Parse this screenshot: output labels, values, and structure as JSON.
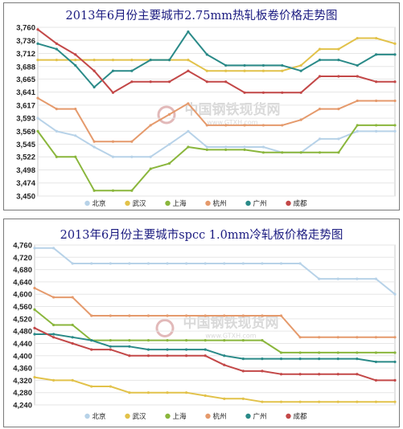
{
  "colors": {
    "beijing": "#b7d2e8",
    "wuhan": "#e2c24a",
    "shanghai": "#8ab63c",
    "hangzhou": "#e59a6c",
    "guangzhou": "#2a8a88",
    "chengdu": "#c34848"
  },
  "watermark": {
    "cn": "中国钢铁现货网",
    "en": "www.GTXH.com"
  },
  "chart_data": [
    {
      "type": "line",
      "title": "2013年6月份主要城市2.75mm热轧板卷价格走势图",
      "x": [
        1,
        2,
        3,
        4,
        5,
        6,
        7,
        8,
        9,
        10,
        11,
        12,
        13,
        14,
        15,
        16,
        17,
        18,
        19,
        20
      ],
      "ylim": [
        3450,
        3760
      ],
      "yticks": [
        3450,
        3474,
        3498,
        3522,
        3545,
        3569,
        3593,
        3617,
        3641,
        3665,
        3688,
        3712,
        3736,
        3760
      ],
      "legend_position": "bottom",
      "grid": true,
      "series": [
        {
          "name": "北京",
          "color_key": "beijing",
          "values": [
            3593,
            3569,
            3561,
            3540,
            3522,
            3522,
            3522,
            3545,
            3569,
            3540,
            3540,
            3540,
            3540,
            3530,
            3530,
            3555,
            3555,
            3569,
            3569,
            3569
          ]
        },
        {
          "name": "武汉",
          "color_key": "wuhan",
          "values": [
            3700,
            3700,
            3700,
            3700,
            3700,
            3700,
            3700,
            3700,
            3700,
            3680,
            3680,
            3680,
            3680,
            3680,
            3690,
            3720,
            3720,
            3740,
            3740,
            3730
          ]
        },
        {
          "name": "上海",
          "color_key": "shanghai",
          "values": [
            3569,
            3522,
            3522,
            3460,
            3460,
            3460,
            3500,
            3510,
            3540,
            3535,
            3535,
            3535,
            3530,
            3530,
            3530,
            3530,
            3530,
            3580,
            3580,
            3580
          ]
        },
        {
          "name": "杭州",
          "color_key": "hangzhou",
          "values": [
            3630,
            3610,
            3610,
            3550,
            3550,
            3550,
            3580,
            3600,
            3620,
            3580,
            3580,
            3580,
            3580,
            3580,
            3590,
            3610,
            3610,
            3625,
            3625,
            3625
          ]
        },
        {
          "name": "广州",
          "color_key": "guangzhou",
          "values": [
            3730,
            3720,
            3690,
            3650,
            3680,
            3680,
            3700,
            3700,
            3752,
            3710,
            3690,
            3690,
            3690,
            3690,
            3680,
            3700,
            3700,
            3690,
            3710,
            3710
          ]
        },
        {
          "name": "成都",
          "color_key": "chengdu",
          "values": [
            3756,
            3730,
            3710,
            3680,
            3640,
            3660,
            3660,
            3660,
            3680,
            3660,
            3660,
            3640,
            3640,
            3640,
            3640,
            3670,
            3670,
            3670,
            3660,
            3660
          ]
        }
      ]
    },
    {
      "type": "line",
      "title": "2013年6月份主要城市spcc 1.0mm冷轧板价格走势图",
      "x": [
        1,
        2,
        3,
        4,
        5,
        6,
        7,
        8,
        9,
        10,
        11,
        12,
        13,
        14,
        15,
        16,
        17,
        18,
        19,
        20
      ],
      "ylim": [
        4240,
        4760
      ],
      "yticks": [
        4240,
        4280,
        4320,
        4360,
        4400,
        4440,
        4480,
        4520,
        4560,
        4600,
        4640,
        4680,
        4720,
        4760
      ],
      "legend_position": "bottom",
      "grid": true,
      "series": [
        {
          "name": "北京",
          "color_key": "beijing",
          "values": [
            4750,
            4750,
            4700,
            4700,
            4700,
            4700,
            4700,
            4700,
            4700,
            4700,
            4700,
            4700,
            4700,
            4700,
            4700,
            4650,
            4650,
            4650,
            4650,
            4600
          ]
        },
        {
          "name": "武汉",
          "color_key": "wuhan",
          "values": [
            4330,
            4320,
            4320,
            4300,
            4300,
            4280,
            4280,
            4280,
            4280,
            4270,
            4260,
            4260,
            4250,
            4250,
            4250,
            4250,
            4250,
            4250,
            4250,
            4250
          ]
        },
        {
          "name": "上海",
          "color_key": "shanghai",
          "values": [
            4550,
            4500,
            4500,
            4450,
            4450,
            4450,
            4450,
            4450,
            4450,
            4450,
            4450,
            4450,
            4450,
            4410,
            4410,
            4410,
            4410,
            4410,
            4410,
            4410
          ]
        },
        {
          "name": "杭州",
          "color_key": "hangzhou",
          "values": [
            4620,
            4590,
            4590,
            4530,
            4530,
            4530,
            4530,
            4530,
            4530,
            4530,
            4530,
            4530,
            4530,
            4530,
            4460,
            4460,
            4460,
            4460,
            4460,
            4460
          ]
        },
        {
          "name": "广州",
          "color_key": "guangzhou",
          "values": [
            4470,
            4470,
            4460,
            4450,
            4430,
            4430,
            4420,
            4420,
            4420,
            4420,
            4400,
            4390,
            4390,
            4390,
            4390,
            4390,
            4390,
            4390,
            4380,
            4380
          ]
        },
        {
          "name": "成都",
          "color_key": "chengdu",
          "values": [
            4490,
            4460,
            4440,
            4420,
            4420,
            4400,
            4400,
            4400,
            4400,
            4400,
            4370,
            4350,
            4350,
            4340,
            4340,
            4340,
            4340,
            4340,
            4320,
            4320
          ]
        }
      ]
    }
  ]
}
